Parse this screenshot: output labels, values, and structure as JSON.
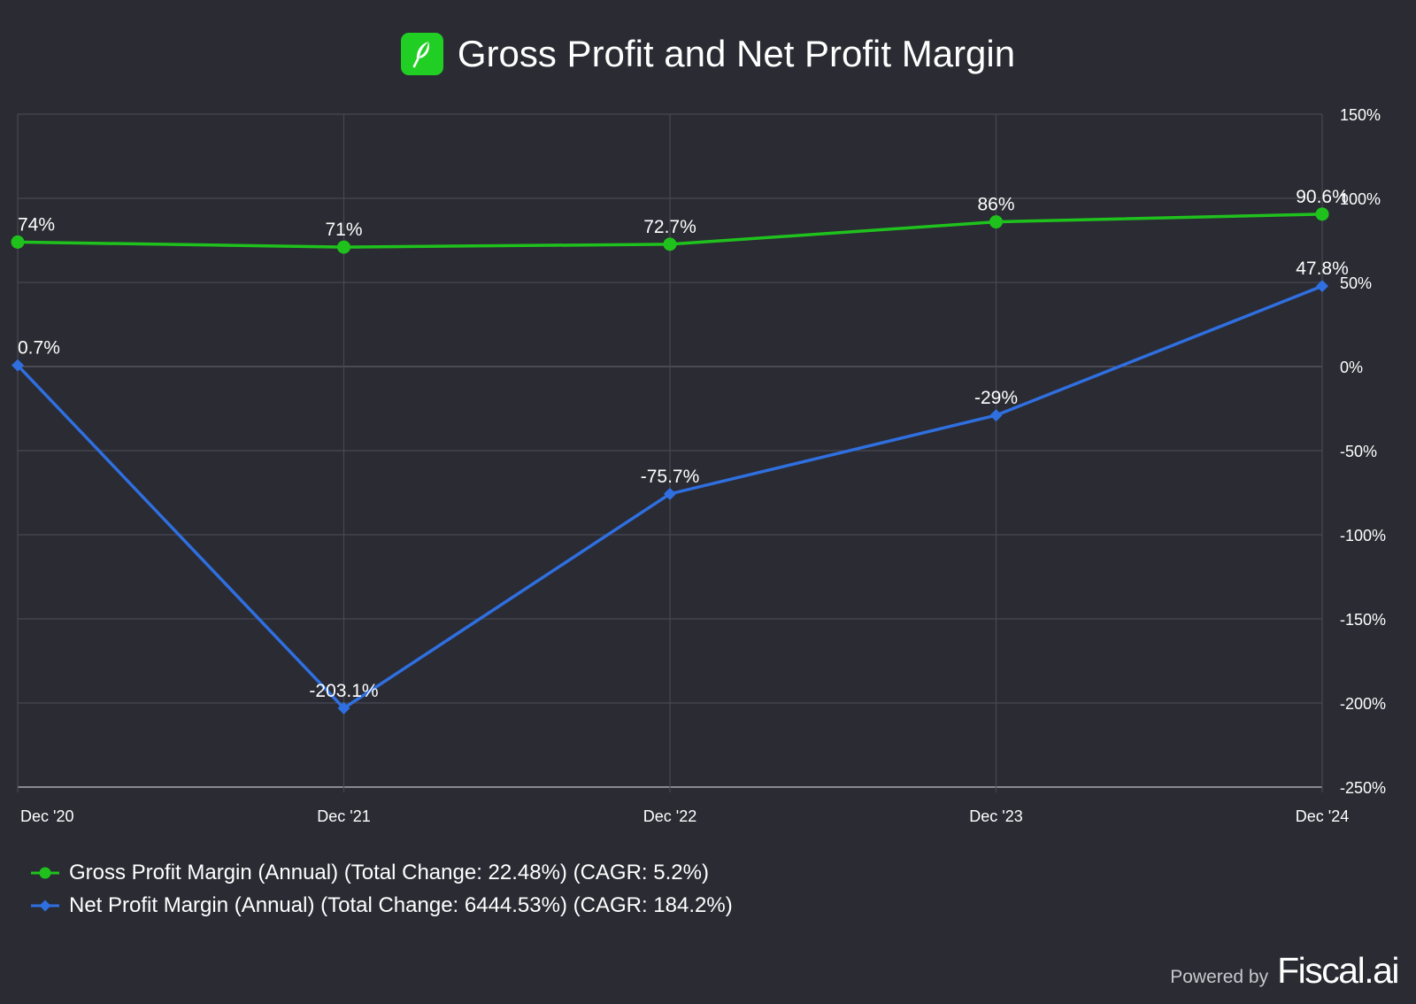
{
  "header": {
    "title": "Gross Profit and Net Profit Margin",
    "logo_icon": "feather-icon",
    "logo_color": "#21ce24"
  },
  "chart_data": {
    "type": "line",
    "title": "Gross Profit and Net Profit Margin",
    "categories": [
      "Dec '20",
      "Dec '21",
      "Dec '22",
      "Dec '23",
      "Dec '24"
    ],
    "y_axis": {
      "position": "right",
      "range": [
        -250,
        150
      ],
      "ticks": [
        150,
        100,
        50,
        0,
        -50,
        -100,
        -150,
        -200,
        -250
      ],
      "tick_labels": [
        "150%",
        "100%",
        "50%",
        "0%",
        "-50%",
        "-100%",
        "-150%",
        "-200%",
        "-250%"
      ],
      "unit": "%"
    },
    "grid": true,
    "legend_position": "bottom-left",
    "series": [
      {
        "name": "Gross Profit Margin (Annual) (Total Change: 22.48%) (CAGR: 5.2%)",
        "color": "#1fc21d",
        "marker": "circle",
        "values": [
          74,
          71,
          72.7,
          86,
          90.6
        ],
        "labels": [
          "74%",
          "71%",
          "72.7%",
          "86%",
          "90.6%"
        ]
      },
      {
        "name": "Net Profit Margin (Annual) (Total Change: 6444.53%) (CAGR: 184.2%)",
        "color": "#2f6fe0",
        "marker": "diamond",
        "values": [
          0.7,
          -203.1,
          -75.7,
          -29,
          47.8
        ],
        "labels": [
          "0.7%",
          "-203.1%",
          "-75.7%",
          "-29%",
          "47.8%"
        ]
      }
    ]
  },
  "footer": {
    "powered_by": "Powered by",
    "brand": "Fiscal.ai"
  }
}
